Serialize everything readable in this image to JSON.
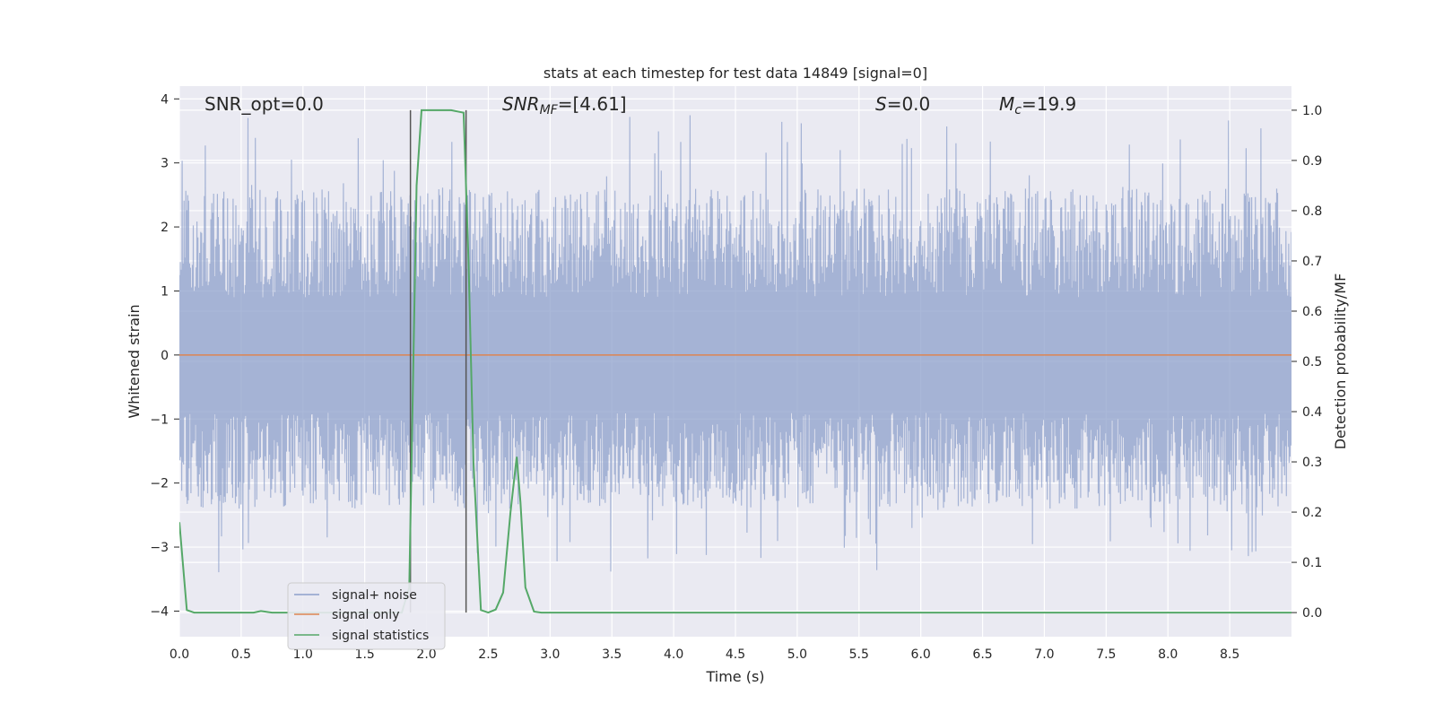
{
  "chart_data": {
    "type": "line",
    "title": "stats at each timestep for test data 14849 [signal=0]",
    "xlabel": "Time (s)",
    "ylabel": "Whitened strain",
    "ylabel_right": "Detection probability/MF",
    "xlim": [
      0.0,
      9.0
    ],
    "ylim": [
      -4.4,
      4.2
    ],
    "ylim_right": [
      -0.048,
      1.048
    ],
    "x_ticks": [
      "0.0",
      "0.5",
      "1.0",
      "1.5",
      "2.0",
      "2.5",
      "3.0",
      "3.5",
      "4.0",
      "4.5",
      "5.0",
      "5.5",
      "6.0",
      "6.5",
      "7.0",
      "7.5",
      "8.0",
      "8.5"
    ],
    "y_ticks": [
      "4",
      "3",
      "2",
      "1",
      "0",
      "−1",
      "−2",
      "−3",
      "−4"
    ],
    "y_ticks_right": [
      "1.0",
      "0.9",
      "0.8",
      "0.7",
      "0.6",
      "0.5",
      "0.4",
      "0.3",
      "0.2",
      "0.1",
      "0.0"
    ],
    "grid": true,
    "legend_position": "lower-left",
    "annotations": {
      "snr_opt": "SNR_opt=0.0",
      "snr_mf_sym": "SNR",
      "snr_mf_sub": "MF",
      "snr_mf_val": "=[4.61]",
      "s_sym": "S",
      "s_val": "=0.0",
      "mc_sym": "M",
      "mc_sub": "c",
      "mc_val": "=19.9"
    },
    "vertical_markers_x": [
      1.87,
      2.32
    ],
    "series": [
      {
        "name": "signal+ noise",
        "color": "#8da0cb",
        "axis": "left",
        "kind": "noise",
        "envelope": {
          "typical_max": 2.6,
          "typical_min": -2.4,
          "peak_max": 3.8,
          "peak_min": -3.4
        }
      },
      {
        "name": "signal only",
        "color": "#dd8452",
        "axis": "left",
        "x": [
          0.0,
          9.0
        ],
        "y": [
          0.0,
          0.0
        ]
      },
      {
        "name": "signal statistics",
        "color": "#55a868",
        "axis": "right",
        "x": [
          0.0,
          0.06,
          0.12,
          0.2,
          0.4,
          0.6,
          0.66,
          0.75,
          0.9,
          1.2,
          1.5,
          1.7,
          1.8,
          1.86,
          1.92,
          1.96,
          2.0,
          2.1,
          2.2,
          2.3,
          2.34,
          2.38,
          2.44,
          2.5,
          2.56,
          2.62,
          2.68,
          2.73,
          2.76,
          2.8,
          2.87,
          2.93,
          3.0,
          9.0
        ],
        "y": [
          0.18,
          0.005,
          0.0,
          0.0,
          0.0,
          0.0,
          0.003,
          0.0,
          0.0,
          0.0,
          0.0,
          0.0,
          0.0,
          0.05,
          0.85,
          1.0,
          1.0,
          1.0,
          1.0,
          0.995,
          0.7,
          0.3,
          0.005,
          0.0,
          0.006,
          0.04,
          0.2,
          0.31,
          0.22,
          0.05,
          0.002,
          0.0,
          0.0,
          0.0
        ]
      }
    ]
  }
}
